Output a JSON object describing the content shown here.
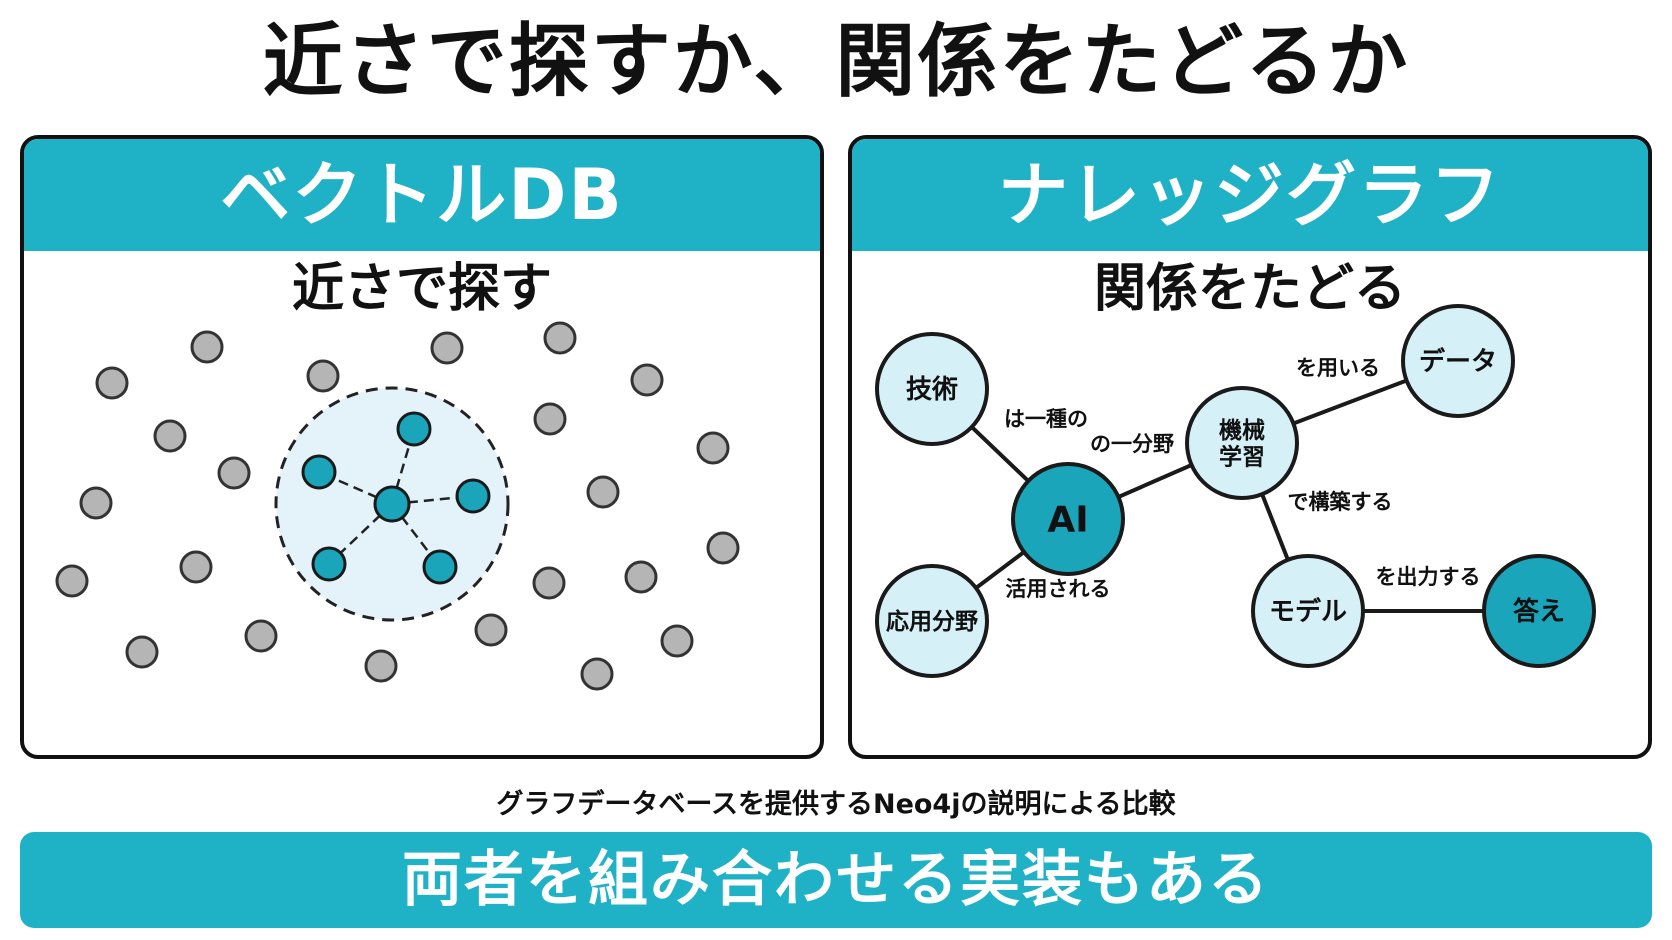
{
  "title": "近さで探すか、関係をたどるか",
  "vector_panel": {
    "header": "ベクトルDB",
    "subtitle": "近さで探す"
  },
  "graph_panel": {
    "header": "ナレッジグラフ",
    "subtitle": "関係をたどる",
    "nodes": [
      {
        "id": "gijutsu",
        "label": "技術"
      },
      {
        "id": "ai",
        "label": "AI",
        "highlight": true
      },
      {
        "id": "oyo",
        "label": "応用分野"
      },
      {
        "id": "kikai",
        "label": "機械\n学習"
      },
      {
        "id": "data",
        "label": "データ"
      },
      {
        "id": "model",
        "label": "モデル"
      },
      {
        "id": "kotae",
        "label": "答え",
        "highlight": true
      }
    ],
    "edges": [
      {
        "from": "gijutsu",
        "to": "ai",
        "label": "は一種の"
      },
      {
        "from": "ai",
        "to": "kikai",
        "label": "の一分野"
      },
      {
        "from": "ai",
        "to": "oyo",
        "label": "活用される"
      },
      {
        "from": "kikai",
        "to": "data",
        "label": "を用いる"
      },
      {
        "from": "kikai",
        "to": "model",
        "label": "で構築する"
      },
      {
        "from": "model",
        "to": "kotae",
        "label": "を出力する"
      }
    ]
  },
  "caption": "グラフデータベースを提供するNeo4jの説明による比較",
  "banner": "両者を組み合わせる実装もある",
  "colors": {
    "accent": "#1fb2c6",
    "node_light": "#d6f0f7",
    "node_dark": "#1aa5bb",
    "dot_gray": "#b5b5b5",
    "cluster_fill": "#e3f3f9"
  }
}
